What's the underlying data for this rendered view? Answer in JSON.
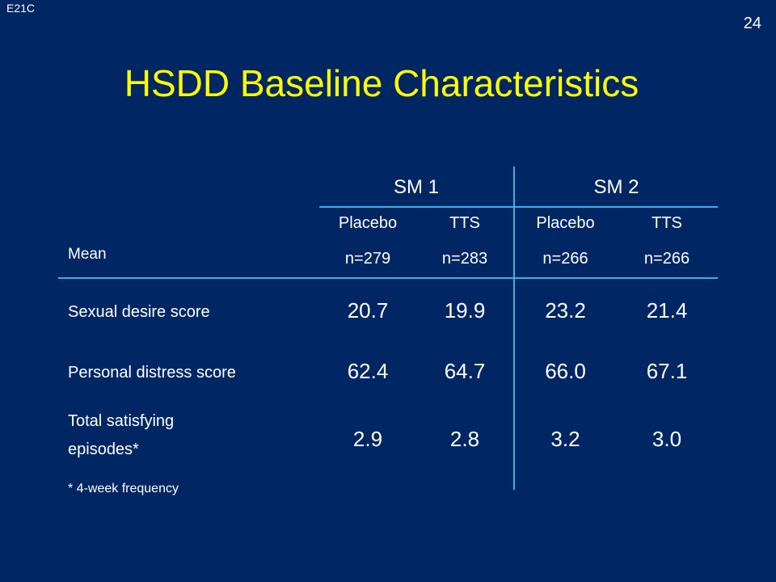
{
  "slide_code": "E21C",
  "slide_number": "24",
  "title": "HSDD Baseline Characteristics",
  "table": {
    "groups": [
      "SM 1",
      "SM 2"
    ],
    "columns": [
      {
        "treatment": "Placebo",
        "n": "n=279"
      },
      {
        "treatment": "TTS",
        "n": "n=283"
      },
      {
        "treatment": "Placebo",
        "n": "n=266"
      },
      {
        "treatment": "TTS",
        "n": "n=266"
      }
    ],
    "header_label": "Mean",
    "rows": [
      {
        "label": "Sexual desire score",
        "values": [
          "20.7",
          "19.9",
          "23.2",
          "21.4"
        ]
      },
      {
        "label": "Personal distress score",
        "values": [
          "62.4",
          "64.7",
          "66.0",
          "67.1"
        ]
      },
      {
        "label_line1": "Total satisfying",
        "label_line2": "episodes*",
        "values": [
          "2.9",
          "2.8",
          "3.2",
          "3.0"
        ]
      }
    ],
    "footnote": "* 4-week frequency"
  }
}
